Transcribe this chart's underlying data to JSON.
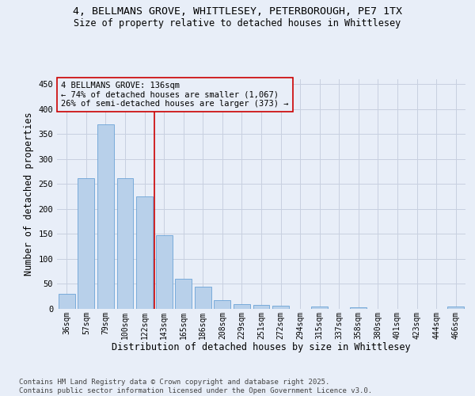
{
  "title_line1": "4, BELLMANS GROVE, WHITTLESEY, PETERBOROUGH, PE7 1TX",
  "title_line2": "Size of property relative to detached houses in Whittlesey",
  "xlabel": "Distribution of detached houses by size in Whittlesey",
  "ylabel": "Number of detached properties",
  "categories": [
    "36sqm",
    "57sqm",
    "79sqm",
    "100sqm",
    "122sqm",
    "143sqm",
    "165sqm",
    "186sqm",
    "208sqm",
    "229sqm",
    "251sqm",
    "272sqm",
    "294sqm",
    "315sqm",
    "337sqm",
    "358sqm",
    "380sqm",
    "401sqm",
    "423sqm",
    "444sqm",
    "466sqm"
  ],
  "values": [
    30,
    262,
    369,
    262,
    226,
    148,
    60,
    45,
    18,
    10,
    8,
    6,
    0,
    5,
    0,
    3,
    0,
    0,
    0,
    0,
    4
  ],
  "bar_color": "#b8d0ea",
  "bar_edge_color": "#6ba3d6",
  "annotation_box_text": "4 BELLMANS GROVE: 136sqm\n← 74% of detached houses are smaller (1,067)\n26% of semi-detached houses are larger (373) →",
  "redline_x": 4.5,
  "vline_color": "#cc0000",
  "box_edge_color": "#cc0000",
  "bg_color": "#e8eef8",
  "footnote": "Contains HM Land Registry data © Crown copyright and database right 2025.\nContains public sector information licensed under the Open Government Licence v3.0.",
  "ylim": [
    0,
    460
  ],
  "yticks": [
    0,
    50,
    100,
    150,
    200,
    250,
    300,
    350,
    400,
    450
  ],
  "grid_color": "#c8d0e0",
  "title_fontsize": 9.5,
  "subtitle_fontsize": 8.5,
  "axis_label_fontsize": 8.5,
  "tick_fontsize": 7,
  "annot_fontsize": 7.5,
  "footnote_fontsize": 6.5
}
